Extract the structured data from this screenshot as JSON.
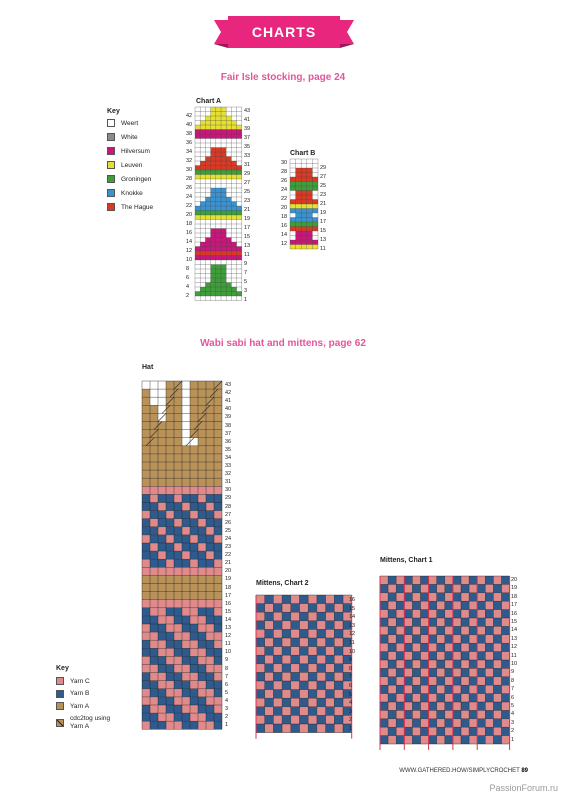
{
  "banner": {
    "title": "CHARTS",
    "color": "#e8267d"
  },
  "fair_isle": {
    "title": "Fair Isle stocking, page 24",
    "key_title": "Key",
    "key": [
      {
        "label": "Weert",
        "color": "#ffffff"
      },
      {
        "label": "White",
        "color": "#8c8c8c"
      },
      {
        "label": "Hilversum",
        "color": "#c8177b"
      },
      {
        "label": "Leuven",
        "color": "#e5e031"
      },
      {
        "label": "Groningen",
        "color": "#3d9e3a"
      },
      {
        "label": "Knokke",
        "color": "#3b92cf"
      },
      {
        "label": "The Hague",
        "color": "#d83a26"
      }
    ],
    "chart_a": {
      "label": "Chart A",
      "rows": 43,
      "left_numbers": [
        "42",
        "40",
        "38",
        "36",
        "34",
        "32",
        "30",
        "28",
        "26",
        "24",
        "22",
        "20",
        "18",
        "16",
        "14",
        "12",
        "10",
        "8",
        "6",
        "4",
        "2"
      ],
      "right_numbers": [
        "43",
        "41",
        "39",
        "37",
        "35",
        "33",
        "31",
        "29",
        "27",
        "25",
        "23",
        "21",
        "19",
        "17",
        "15",
        "13",
        "11",
        "9",
        "7",
        "5",
        "3",
        "1"
      ]
    },
    "chart_b": {
      "label": "Chart B",
      "rows": 30,
      "left_numbers": [
        "30",
        "28",
        "26",
        "24",
        "22",
        "20",
        "18",
        "16",
        "14",
        "12"
      ],
      "right_numbers": [
        "29",
        "27",
        "25",
        "23",
        "21",
        "19",
        "17",
        "15",
        "13",
        "11"
      ]
    }
  },
  "wabi": {
    "title": "Wabi sabi hat and mittens, page 62",
    "hat": {
      "label": "Hat",
      "right_numbers": [
        "43",
        "42",
        "41",
        "40",
        "39",
        "38",
        "37",
        "36",
        "35",
        "34",
        "33",
        "32",
        "31",
        "30",
        "29",
        "28",
        "27",
        "26",
        "25",
        "24",
        "23",
        "22",
        "21",
        "20",
        "19",
        "18",
        "17",
        "16",
        "15",
        "14",
        "13",
        "12",
        "11",
        "10",
        "9",
        "8",
        "7",
        "6",
        "5",
        "4",
        "3",
        "2",
        "1"
      ]
    },
    "mittens2": {
      "label": "Mittens, Chart 2",
      "right_numbers": [
        "16",
        "15",
        "14",
        "13",
        "12",
        "11",
        "10",
        "9",
        "8",
        "7",
        "6",
        "5",
        "4",
        "3",
        "2",
        "1"
      ]
    },
    "mittens1": {
      "label": "Mittens, Chart 1",
      "right_numbers": [
        "20",
        "19",
        "18",
        "17",
        "16",
        "15",
        "14",
        "13",
        "12",
        "11",
        "10",
        "9",
        "8",
        "7",
        "6",
        "5",
        "4",
        "3",
        "2",
        "1"
      ]
    },
    "key_title": "Key",
    "key": [
      {
        "label": "Yarn C",
        "color": "#e08a8c"
      },
      {
        "label": "Yarn B",
        "color": "#2f5a8c"
      },
      {
        "label": "Yarn A",
        "color": "#b9925a"
      },
      {
        "label": "cdc2tog using Yarn A",
        "color": "#b9925a"
      }
    ]
  },
  "footer": {
    "url": "WWW.GATHERED.HOW/SIMPLYCROCHET",
    "page": "89"
  },
  "watermark": "PassionForum.ru"
}
